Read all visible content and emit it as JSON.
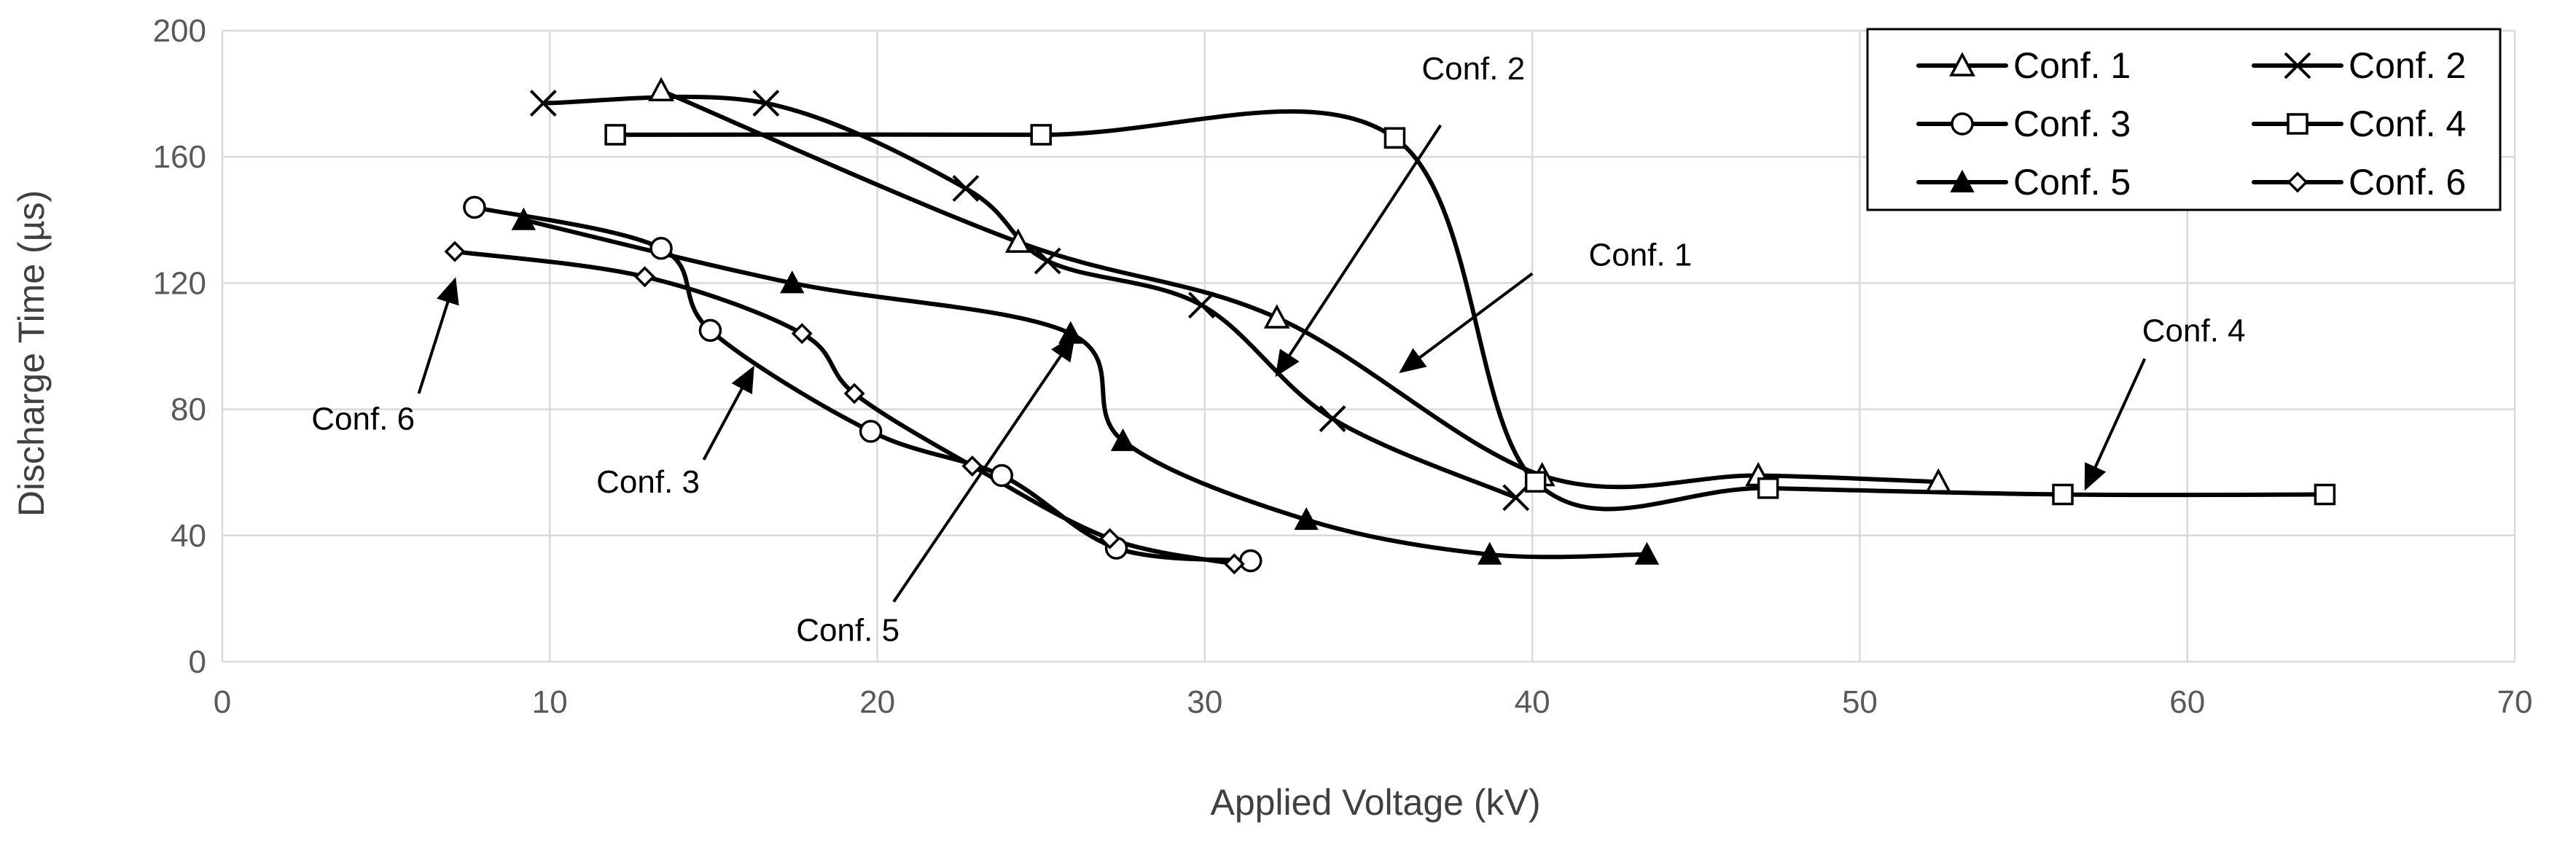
{
  "chart_data": {
    "type": "line",
    "title": "",
    "xlabel": "Applied Voltage (kV)",
    "ylabel": "Discharge Time (µs)",
    "xlim": [
      0,
      70
    ],
    "ylim": [
      0,
      200
    ],
    "x_ticks": [
      0,
      10,
      20,
      30,
      40,
      50,
      60,
      70
    ],
    "y_ticks": [
      0,
      40,
      80,
      120,
      160,
      200
    ],
    "grid": true,
    "legend_position": "top-right",
    "series": [
      {
        "name": "Conf. 1",
        "marker": "triangle-open",
        "x": [
          13.4,
          24.3,
          32.2,
          40.3,
          46.9,
          52.4
        ],
        "y": [
          181,
          133,
          109,
          59,
          59,
          57
        ]
      },
      {
        "name": "Conf. 2",
        "marker": "x",
        "x": [
          9.8,
          16.6,
          22.7,
          25.2,
          29.9,
          33.9,
          39.5
        ],
        "y": [
          177,
          177,
          150,
          127,
          113,
          77,
          52
        ]
      },
      {
        "name": "Conf. 3",
        "marker": "circle-open",
        "x": [
          7.7,
          13.4,
          14.9,
          19.8,
          23.8,
          27.3,
          31.4
        ],
        "y": [
          144,
          131,
          105,
          73,
          59,
          36,
          32
        ]
      },
      {
        "name": "Conf. 4",
        "marker": "square-open",
        "x": [
          12.0,
          25.0,
          35.8,
          40.1,
          47.2,
          56.2,
          64.2
        ],
        "y": [
          167,
          167,
          166,
          57,
          55,
          53,
          53
        ]
      },
      {
        "name": "Conf. 5",
        "marker": "triangle-filled",
        "x": [
          9.2,
          17.4,
          25.9,
          27.5,
          33.1,
          38.7,
          43.5
        ],
        "y": [
          140,
          120,
          104,
          70,
          45,
          34,
          34
        ]
      },
      {
        "name": "Conf. 6",
        "marker": "diamond-open",
        "x": [
          7.1,
          12.9,
          17.7,
          19.3,
          22.9,
          27.1,
          30.9
        ],
        "y": [
          130,
          122,
          104,
          85,
          62,
          39,
          31
        ]
      }
    ],
    "annotations": [
      {
        "text": "Conf. 2",
        "text_at": [
          38.2,
          188
        ],
        "arrow_from": [
          37.2,
          170
        ],
        "arrow_to": [
          32.2,
          91
        ]
      },
      {
        "text": "Conf. 1",
        "text_at": [
          43.3,
          129
        ],
        "arrow_from": [
          40.0,
          123
        ],
        "arrow_to": [
          36.0,
          92
        ]
      },
      {
        "text": "Conf. 4",
        "text_at": [
          60.2,
          105
        ],
        "arrow_from": [
          58.7,
          96
        ],
        "arrow_to": [
          56.9,
          55
        ]
      },
      {
        "text": "Conf. 6",
        "text_at": [
          4.3,
          77
        ],
        "arrow_from": [
          6.0,
          85
        ],
        "arrow_to": [
          7.1,
          121
        ]
      },
      {
        "text": "Conf. 3",
        "text_at": [
          13.0,
          57
        ],
        "arrow_from": [
          14.7,
          64
        ],
        "arrow_to": [
          16.2,
          93
        ]
      },
      {
        "text": "Conf. 5",
        "text_at": [
          19.1,
          10
        ],
        "arrow_from": [
          20.5,
          19
        ],
        "arrow_to": [
          26.0,
          103
        ]
      }
    ]
  }
}
